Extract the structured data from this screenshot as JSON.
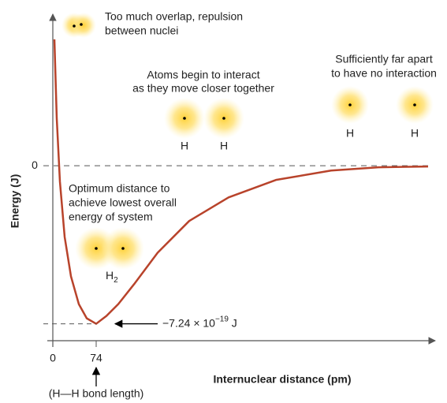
{
  "chart_data": {
    "type": "line",
    "y_label": "Energy (J)",
    "x_label": "Internuclear distance (pm)",
    "x": [
      2.7,
      6.7,
      12.1,
      20.2,
      31,
      44.4,
      57.9,
      74,
      91.5,
      111.7,
      138.6,
      179,
      232.8,
      300,
      380.9,
      475,
      555.9,
      640.6
    ],
    "series": [
      {
        "color": "#b8432b",
        "values": [
          5.79e-19,
          2.17e-19,
          -7.2e-20,
          -3.26e-19,
          -5.07e-19,
          -6.34e-19,
          -6.99e-19,
          -7.24e-19,
          -6.88e-19,
          -6.34e-19,
          -5.43e-19,
          -3.98e-19,
          -2.53e-19,
          -1.45e-19,
          -6.5e-20,
          -2.2e-20,
          -7e-21,
          -3.6e-21
        ]
      }
    ],
    "xlim": [
      0,
      650
    ],
    "ylim": [
      -8e-19,
      7e-19
    ],
    "xticks": [
      0,
      74
    ],
    "yticks": [
      0
    ],
    "minimum_label": [
      "−7.24 × 10",
      "−19",
      " J"
    ],
    "bond_length_label": "(H—H bond length)",
    "annotations": [
      {
        "lines": [
          "Too much overlap, repulsion",
          "between nuclei"
        ]
      },
      {
        "lines": [
          "Atoms begin to interact",
          "as they move closer together"
        ],
        "atoms": [
          "H",
          "H"
        ]
      },
      {
        "lines": [
          "Sufficiently far apart",
          "to have no interaction"
        ],
        "atoms": [
          "H",
          "H"
        ]
      },
      {
        "lines": [
          "Optimum distance to",
          "achieve lowest overall",
          "energy of system"
        ],
        "molecule": [
          "H",
          "2"
        ]
      }
    ]
  }
}
